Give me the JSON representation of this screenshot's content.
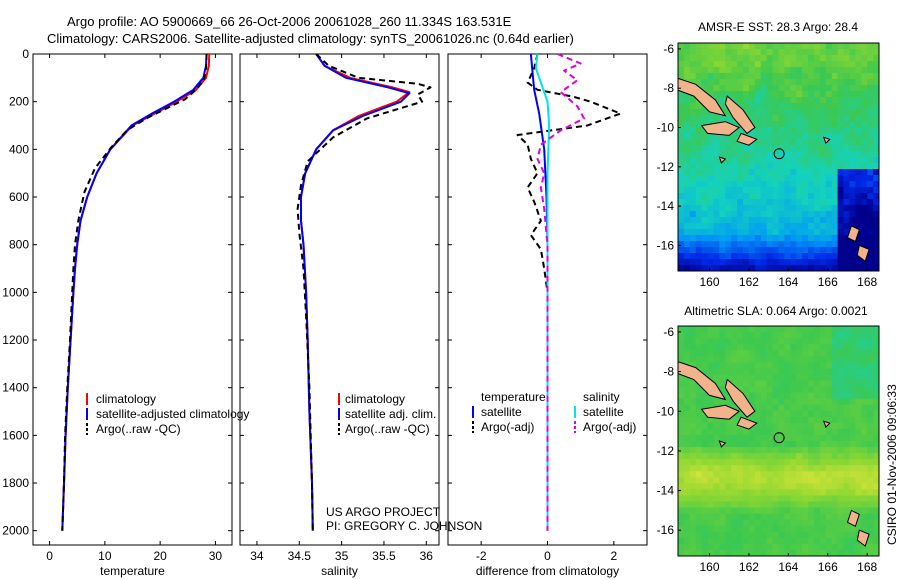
{
  "header": {
    "line1": "Argo profile: AO 5900669_66 26-Oct-2006 20061028_260 11.334S 163.531E",
    "line2": "Climatology: CARS2006. Satellite-adjusted climatology: synTS_20061026.nc (0.64d earlier)"
  },
  "side_stamp": "CSIRO 01-Nov-2006 09:06:33",
  "project": {
    "line1": "US ARGO PROJECT",
    "line2": "PI: GREGORY C. JOHNSON"
  },
  "colors": {
    "climatology": "#ff0000",
    "satellite": "#0000ff",
    "argo": "#000000",
    "salinity_satellite": "#00e5e5",
    "salinity_argo": "#e000e0",
    "land": "#f2b38a"
  },
  "chart_data": [
    {
      "type": "line",
      "id": "temperature",
      "xlabel": "temperature",
      "ylabel": "",
      "xlim": [
        -3,
        33
      ],
      "ylim": [
        2060,
        0
      ],
      "xticks": [
        0,
        10,
        20,
        30
      ],
      "yticks": [
        0,
        200,
        400,
        600,
        800,
        1000,
        1200,
        1400,
        1600,
        1800,
        2000
      ],
      "legend": [
        "climatology",
        "satellite-adjusted climatology",
        "Argo(..raw -QC)"
      ],
      "series": [
        {
          "name": "climatology",
          "color": "#ff0000",
          "dash": "",
          "points": [
            [
              28.9,
              0
            ],
            [
              28.8,
              50
            ],
            [
              28.3,
              100
            ],
            [
              26.5,
              150
            ],
            [
              23,
              200
            ],
            [
              19,
              250
            ],
            [
              15,
              300
            ],
            [
              11,
              400
            ],
            [
              8.5,
              500
            ],
            [
              6.8,
              600
            ],
            [
              5.6,
              700
            ],
            [
              5,
              800
            ],
            [
              4.6,
              900
            ],
            [
              4.3,
              1000
            ],
            [
              3.8,
              1200
            ],
            [
              3.3,
              1400
            ],
            [
              2.9,
              1600
            ],
            [
              2.6,
              1800
            ],
            [
              2.3,
              2000
            ]
          ]
        },
        {
          "name": "satellite-adjusted climatology",
          "color": "#0000ff",
          "dash": "",
          "points": [
            [
              28.4,
              0
            ],
            [
              28.3,
              50
            ],
            [
              27.8,
              100
            ],
            [
              26,
              150
            ],
            [
              22.5,
              200
            ],
            [
              18.5,
              250
            ],
            [
              14.8,
              300
            ],
            [
              11,
              400
            ],
            [
              8.5,
              500
            ],
            [
              6.8,
              600
            ],
            [
              5.6,
              700
            ],
            [
              5,
              800
            ],
            [
              4.6,
              900
            ],
            [
              4.3,
              1000
            ],
            [
              3.8,
              1200
            ],
            [
              3.3,
              1400
            ],
            [
              2.9,
              1600
            ],
            [
              2.6,
              1800
            ],
            [
              2.3,
              2000
            ]
          ]
        },
        {
          "name": "Argo(..raw -QC)",
          "color": "#000000",
          "dash": "6,4",
          "points": [
            [
              28.4,
              0
            ],
            [
              28.3,
              60
            ],
            [
              27.9,
              110
            ],
            [
              26.5,
              150
            ],
            [
              24.5,
              190
            ],
            [
              21,
              230
            ],
            [
              17.5,
              270
            ],
            [
              14,
              320
            ],
            [
              11.2,
              390
            ],
            [
              8.2,
              480
            ],
            [
              6.3,
              580
            ],
            [
              5.2,
              700
            ],
            [
              4.6,
              800
            ],
            [
              4.3,
              900
            ],
            [
              4.1,
              1000
            ],
            [
              3.7,
              1200
            ],
            [
              3.2,
              1400
            ],
            [
              2.8,
              1600
            ],
            [
              2.6,
              1800
            ],
            [
              2.3,
              2000
            ]
          ]
        }
      ]
    },
    {
      "type": "line",
      "id": "salinity",
      "xlabel": "salinity",
      "ylabel": "",
      "xlim": [
        33.8,
        36.15
      ],
      "ylim": [
        2060,
        0
      ],
      "xticks": [
        34,
        34.5,
        35,
        35.5,
        36
      ],
      "legend": [
        "climatology",
        "satellite adj. clim.",
        "Argo(..raw -QC)"
      ],
      "series": [
        {
          "name": "climatology",
          "color": "#ff0000",
          "dash": "",
          "points": [
            [
              34.7,
              0
            ],
            [
              34.8,
              50
            ],
            [
              35.1,
              100
            ],
            [
              35.6,
              140
            ],
            [
              35.8,
              160
            ],
            [
              35.65,
              200
            ],
            [
              35.2,
              260
            ],
            [
              34.9,
              320
            ],
            [
              34.7,
              400
            ],
            [
              34.57,
              500
            ],
            [
              34.52,
              600
            ],
            [
              34.52,
              700
            ],
            [
              34.55,
              800
            ],
            [
              34.58,
              1000
            ],
            [
              34.6,
              1200
            ],
            [
              34.62,
              1500
            ],
            [
              34.65,
              1800
            ],
            [
              34.66,
              2000
            ]
          ]
        },
        {
          "name": "satellite adj. clim.",
          "color": "#0000ff",
          "dash": "",
          "points": [
            [
              34.7,
              0
            ],
            [
              34.8,
              50
            ],
            [
              35.05,
              100
            ],
            [
              35.55,
              140
            ],
            [
              35.8,
              165
            ],
            [
              35.7,
              200
            ],
            [
              35.25,
              260
            ],
            [
              34.9,
              320
            ],
            [
              34.7,
              400
            ],
            [
              34.57,
              500
            ],
            [
              34.52,
              600
            ],
            [
              34.52,
              700
            ],
            [
              34.55,
              800
            ],
            [
              34.58,
              1000
            ],
            [
              34.6,
              1200
            ],
            [
              34.62,
              1500
            ],
            [
              34.65,
              1800
            ],
            [
              34.66,
              2000
            ]
          ]
        },
        {
          "name": "Argo(..raw -QC)",
          "color": "#000000",
          "dash": "6,4",
          "points": [
            [
              34.7,
              0
            ],
            [
              34.85,
              50
            ],
            [
              35.2,
              100
            ],
            [
              35.9,
              125
            ],
            [
              36.05,
              140
            ],
            [
              35.9,
              170
            ],
            [
              35.95,
              200
            ],
            [
              35.3,
              270
            ],
            [
              34.9,
              350
            ],
            [
              34.6,
              450
            ],
            [
              34.52,
              550
            ],
            [
              34.48,
              650
            ],
            [
              34.5,
              750
            ],
            [
              34.55,
              900
            ],
            [
              34.58,
              1100
            ],
            [
              34.62,
              1400
            ],
            [
              34.65,
              1800
            ],
            [
              34.66,
              2000
            ]
          ]
        }
      ]
    },
    {
      "type": "line",
      "id": "difference",
      "xlabel": "difference from climatology",
      "ylabel": "",
      "xlim": [
        -3,
        3
      ],
      "ylim": [
        2060,
        0
      ],
      "xticks": [
        -2,
        0,
        2
      ],
      "legend_titles": [
        "temperature",
        "salinity"
      ],
      "legend": [
        "satellite",
        "Argo(-adj)",
        "satellite",
        "Argo(-adj)"
      ],
      "series": [
        {
          "name": "temperature satellite",
          "color": "#0000ff",
          "dash": "",
          "points": [
            [
              -0.5,
              0
            ],
            [
              -0.45,
              80
            ],
            [
              -0.4,
              150
            ],
            [
              -0.25,
              250
            ],
            [
              -0.1,
              400
            ],
            [
              -0.03,
              600
            ],
            [
              0,
              800
            ],
            [
              0,
              2000
            ]
          ]
        },
        {
          "name": "temperature Argo(-adj)",
          "color": "#000000",
          "dash": "6,4",
          "points": [
            [
              -0.3,
              0
            ],
            [
              -0.4,
              60
            ],
            [
              -0.6,
              120
            ],
            [
              -0.3,
              150
            ],
            [
              0.8,
              180
            ],
            [
              1.3,
              200
            ],
            [
              2.2,
              250
            ],
            [
              1.2,
              300
            ],
            [
              -0.9,
              340
            ],
            [
              -0.6,
              380
            ],
            [
              -0.5,
              440
            ],
            [
              -0.3,
              500
            ],
            [
              -0.6,
              560
            ],
            [
              -0.4,
              620
            ],
            [
              -0.2,
              700
            ],
            [
              -0.5,
              760
            ],
            [
              -0.2,
              820
            ],
            [
              -0.1,
              900
            ],
            [
              0,
              1000
            ],
            [
              0,
              2000
            ]
          ]
        },
        {
          "name": "salinity satellite",
          "color": "#00e5e5",
          "dash": "",
          "points": [
            [
              -0.3,
              0
            ],
            [
              -0.35,
              60
            ],
            [
              -0.2,
              120
            ],
            [
              0,
              200
            ],
            [
              0.05,
              300
            ],
            [
              0,
              500
            ],
            [
              0,
              2000
            ]
          ]
        },
        {
          "name": "salinity Argo(-adj)",
          "color": "#e000e0",
          "dash": "6,4",
          "points": [
            [
              0.3,
              0
            ],
            [
              1.0,
              40
            ],
            [
              0.5,
              70
            ],
            [
              0.9,
              110
            ],
            [
              0.4,
              160
            ],
            [
              0.9,
              220
            ],
            [
              1.1,
              270
            ],
            [
              0.4,
              320
            ],
            [
              -0.2,
              380
            ],
            [
              -0.3,
              440
            ],
            [
              -0.1,
              500
            ],
            [
              -0.2,
              560
            ],
            [
              -0.1,
              650
            ],
            [
              0,
              800
            ],
            [
              0,
              2000
            ]
          ]
        }
      ]
    },
    {
      "type": "heatmap",
      "id": "sst_map",
      "title": "AMSR-E SST: 28.3 Argo: 28.4",
      "xlim": [
        158.4,
        168.6
      ],
      "ylim": [
        -17.3,
        -5.7
      ],
      "xticks": [
        160,
        162,
        164,
        166,
        168
      ],
      "yticks": [
        -6,
        -8,
        -10,
        -12,
        -14,
        -16
      ],
      "marker": [
        163.531,
        -11.334
      ]
    },
    {
      "type": "heatmap",
      "id": "sla_map",
      "title": "Altimetric SLA: 0.064 Argo: 0.0021",
      "xlim": [
        158.4,
        168.6
      ],
      "ylim": [
        -17.3,
        -5.7
      ],
      "xticks": [
        160,
        162,
        164,
        166,
        168
      ],
      "yticks": [
        -6,
        -8,
        -10,
        -12,
        -14,
        -16
      ],
      "marker": [
        163.531,
        -11.334
      ]
    }
  ]
}
